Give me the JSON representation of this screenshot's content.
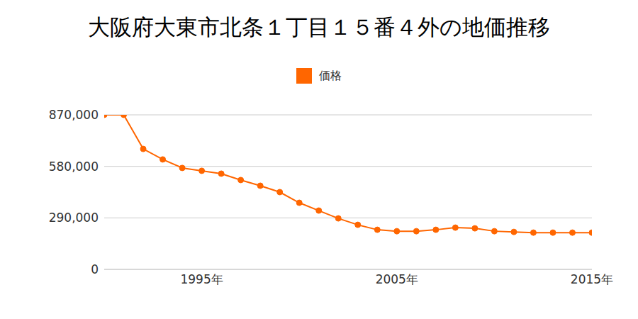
{
  "chart_data": {
    "type": "line",
    "title": "大阪府大東市北条１丁目１５番４外の地価推移",
    "x": [
      1990,
      1991,
      1992,
      1993,
      1994,
      1995,
      1996,
      1997,
      1998,
      1999,
      2000,
      2001,
      2002,
      2003,
      2004,
      2005,
      2006,
      2007,
      2008,
      2009,
      2010,
      2011,
      2012,
      2013,
      2014,
      2015
    ],
    "series": [
      {
        "name": "価格",
        "color": "#ff6600",
        "marker": "circle",
        "values": [
          870000,
          870000,
          678000,
          619000,
          571000,
          555000,
          539000,
          503000,
          471000,
          435000,
          375000,
          331000,
          287000,
          251000,
          223000,
          215000,
          215000,
          223000,
          235000,
          231000,
          215000,
          211000,
          207000,
          207000,
          207000,
          207000
        ]
      }
    ],
    "xlim": [
      1990,
      2015
    ],
    "xticks": [
      {
        "value": 1995,
        "label": "1995年"
      },
      {
        "value": 2005,
        "label": "2005年"
      },
      {
        "value": 2015,
        "label": "2015年"
      }
    ],
    "ylim": [
      0,
      870000
    ],
    "yticks": [
      0,
      {
        "value": 290000,
        "label": "290,000"
      },
      {
        "value": 580000,
        "label": "580,000"
      },
      {
        "value": 870000,
        "label": "870,000"
      }
    ],
    "grid": true,
    "legend": "top"
  }
}
